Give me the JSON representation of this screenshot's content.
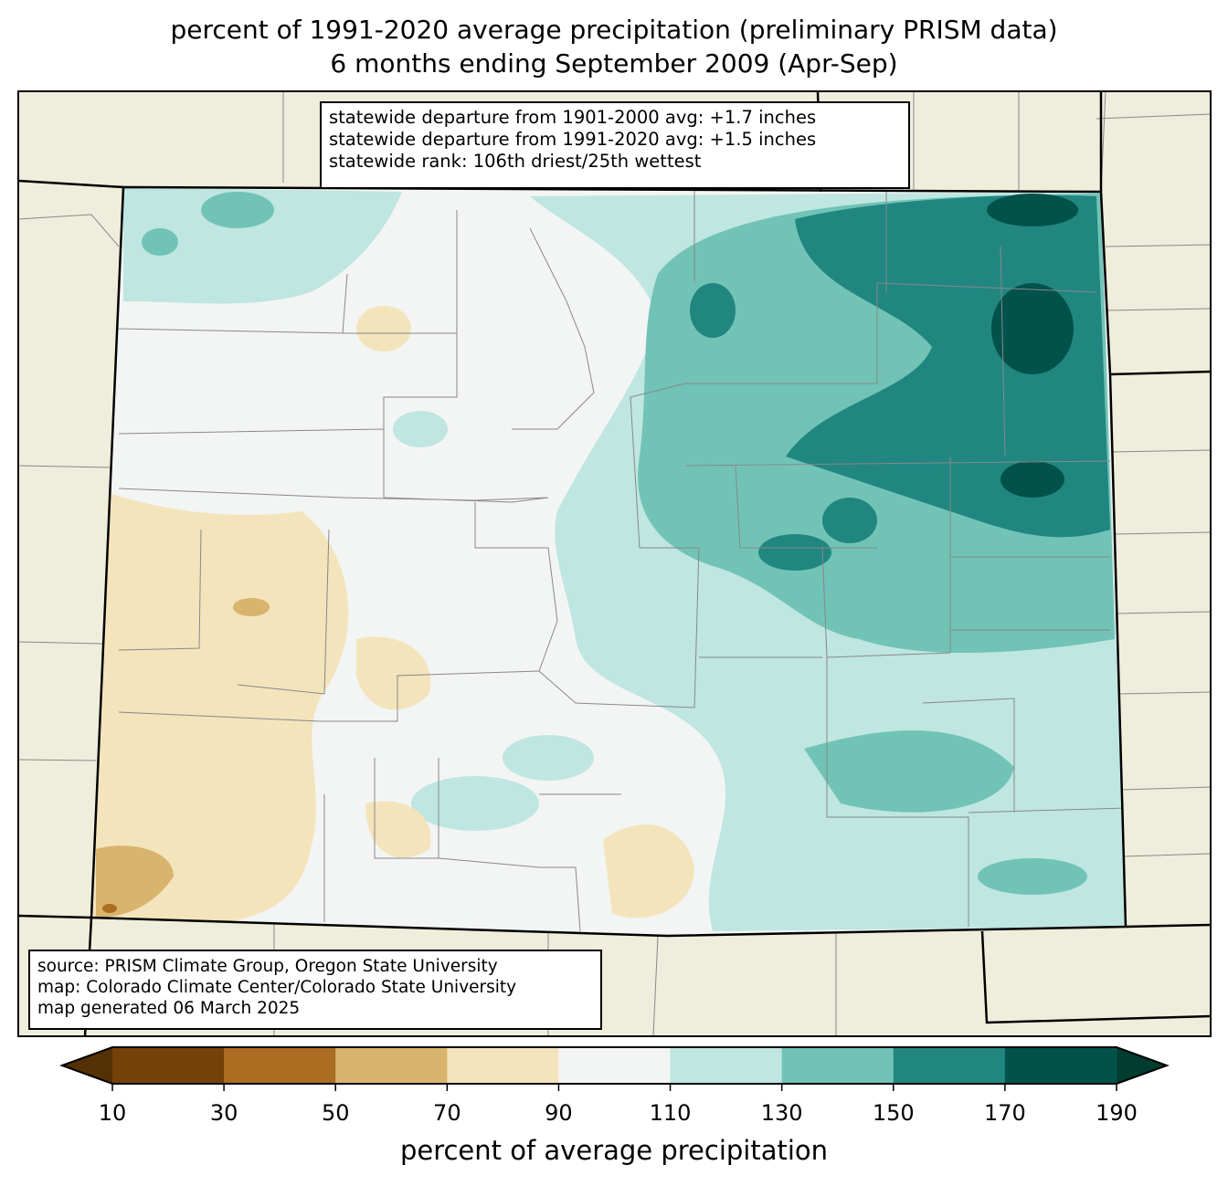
{
  "title": {
    "line1": "percent of 1991-2020 average precipitation (preliminary PRISM data)",
    "line2": "6 months ending September 2009 (Apr-Sep)"
  },
  "stats": [
    "statewide departure from 1901-2000 avg: +1.7 inches",
    "statewide departure from 1991-2020 avg: +1.5 inches",
    "statewide rank: 106th driest/25th wettest"
  ],
  "source": [
    "source: PRISM Climate Group, Oregon State University",
    "map: Colorado Climate Center/Colorado State University",
    "map generated 06 March 2025"
  ],
  "colorbar": {
    "label": "percent of average precipitation",
    "ticks": [
      "10",
      "30",
      "50",
      "70",
      "90",
      "110",
      "130",
      "150",
      "170",
      "190"
    ],
    "under_color": "#543005",
    "over_color": "#003c30",
    "colors": [
      "#744109",
      "#ab6d21",
      "#d9b46d",
      "#f3e4bc",
      "#f3f5f4",
      "#bfe6e1",
      "#71c3b6",
      "#218680",
      "#01524a"
    ]
  }
}
